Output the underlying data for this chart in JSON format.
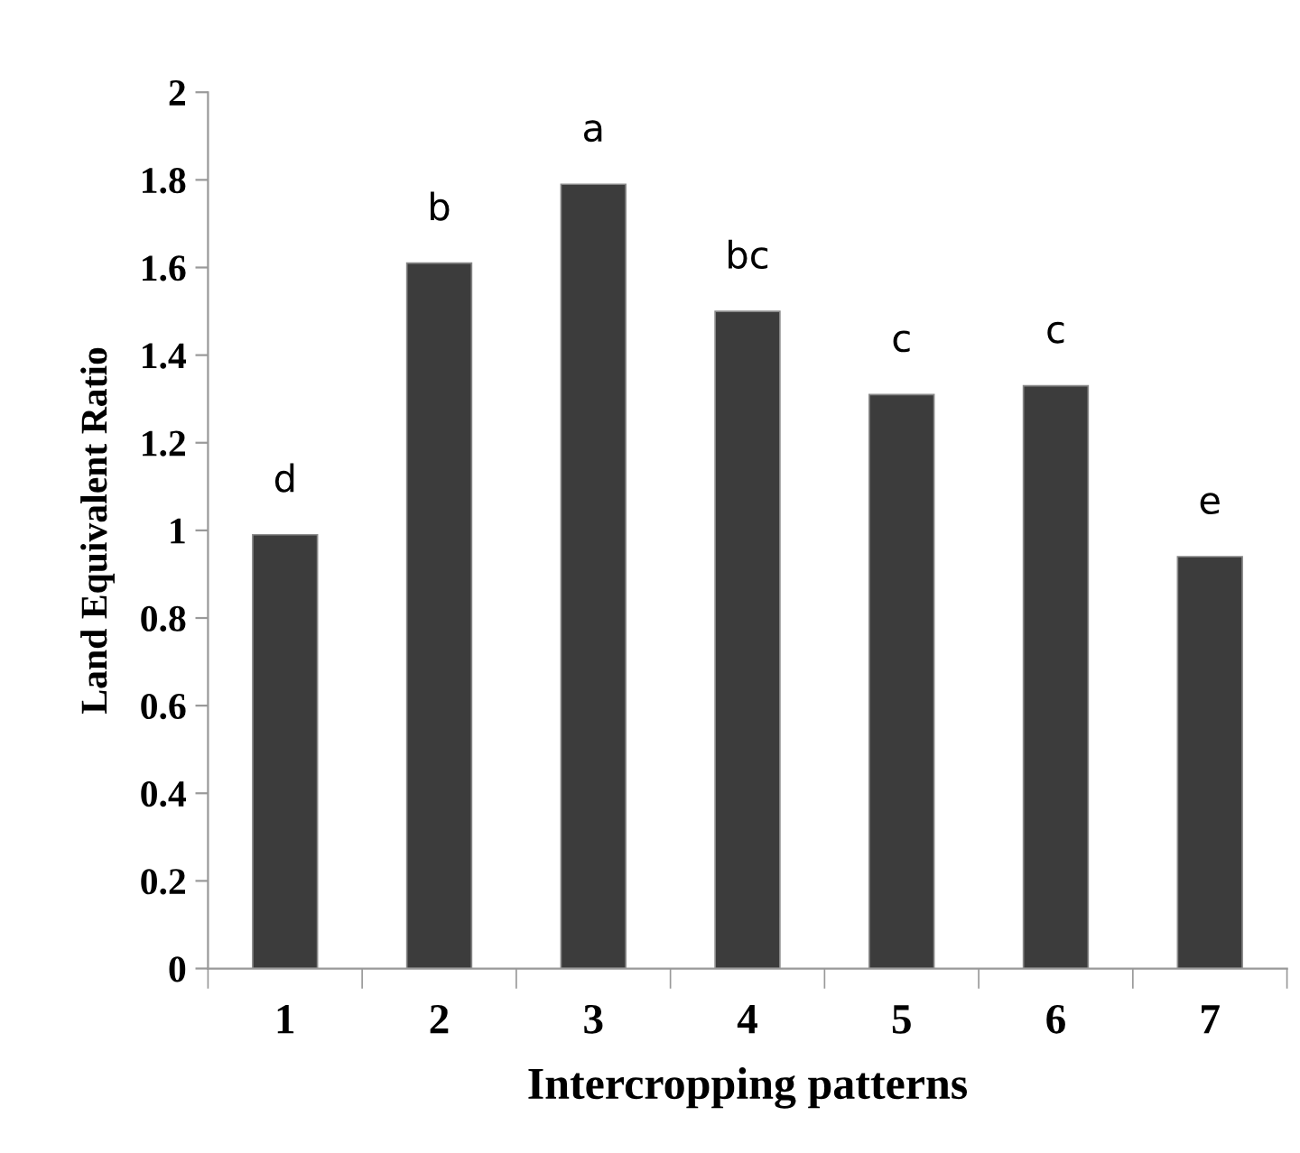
{
  "chart_data": {
    "type": "bar",
    "xlabel": "Intercropping patterns",
    "ylabel": "Land Equivalent Ratio",
    "categories": [
      "1",
      "2",
      "3",
      "4",
      "5",
      "6",
      "7"
    ],
    "values": [
      0.99,
      1.61,
      1.79,
      1.5,
      1.31,
      1.33,
      0.94
    ],
    "color": "#3c3c3c",
    "ylim": [
      0,
      2
    ],
    "yticks": [
      0,
      0.2,
      0.4,
      0.6,
      0.8,
      1,
      1.2,
      1.4,
      1.6,
      1.8,
      2
    ],
    "annotations": [
      {
        "text": "d",
        "x": "1",
        "y": 0.99
      },
      {
        "text": "b",
        "x": "2",
        "y": 1.61
      },
      {
        "text": "a",
        "x": "3",
        "y": 1.79
      },
      {
        "text": "bc",
        "x": "4",
        "y": 1.5
      },
      {
        "text": "c",
        "x": "5",
        "y": 1.31
      },
      {
        "text": "c",
        "x": "6",
        "y": 1.33
      },
      {
        "text": "e",
        "x": "7",
        "y": 0.94
      }
    ]
  }
}
